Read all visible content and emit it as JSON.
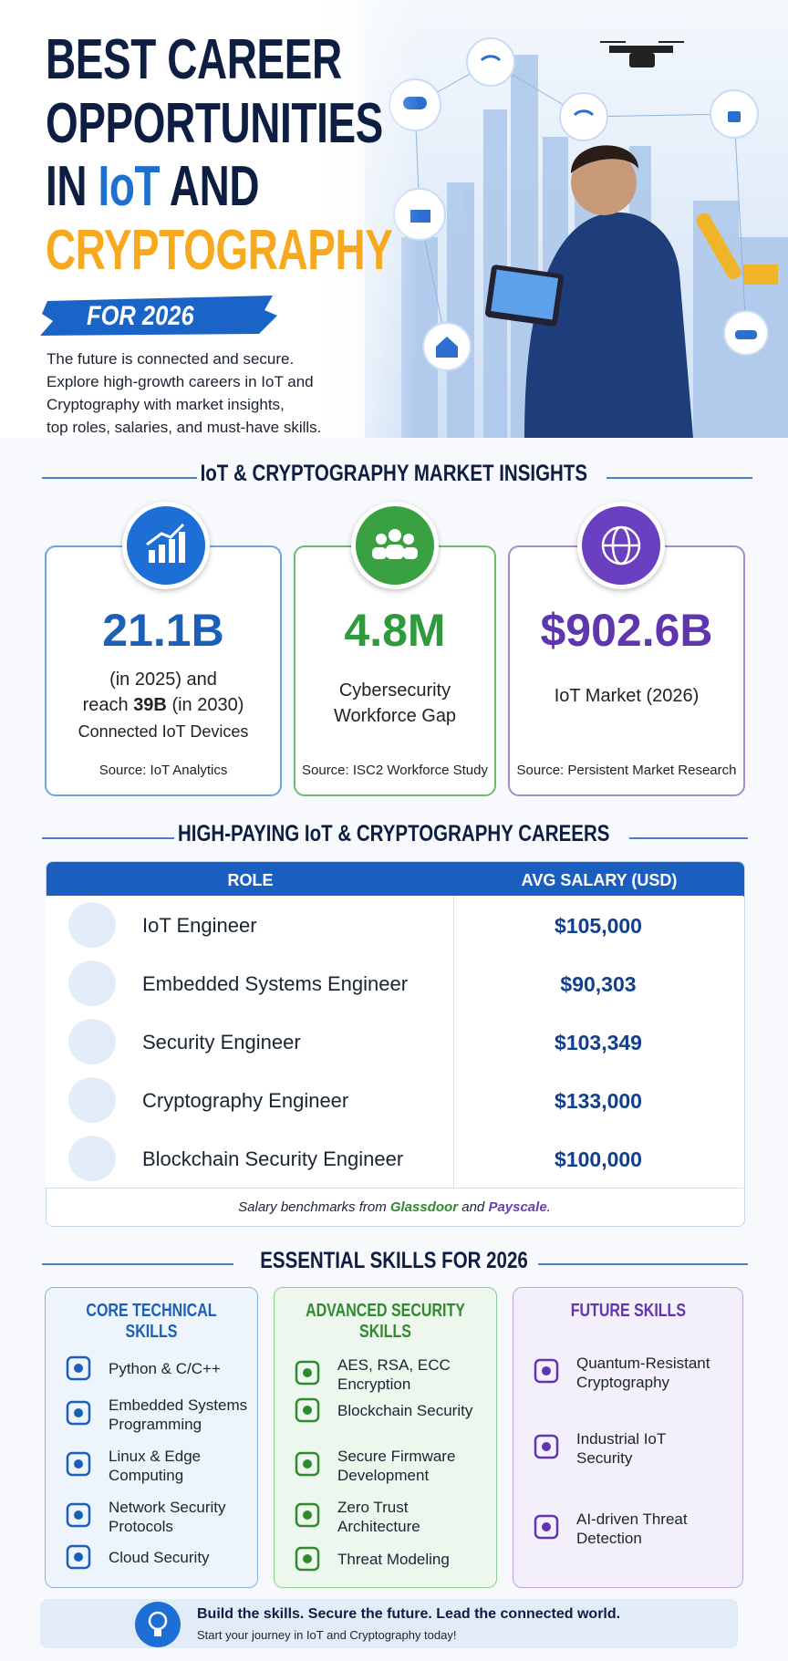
{
  "header": {
    "title_line_1": "BEST CAREER",
    "title_line_2": "OPPORTUNITIES",
    "title_line_3_a": "IN",
    "title_line_3_b": "IoT",
    "title_line_3_c": "AND",
    "title_line_4": "CRYPTOGRAPHY",
    "badge": "FOR 2026",
    "description": [
      "The future is connected and secure.",
      "Explore high-growth careers in IoT and",
      "Cryptography with market insights,",
      "top roles, salaries, and must-have skills."
    ]
  },
  "insights": {
    "heading": "IoT & CRYPTOGRAPHY MARKET INSIGHTS",
    "cards": [
      {
        "value": "21.1B",
        "text_a": "(in 2025) and",
        "text_b": "reach",
        "text_bold": "39B",
        "text_c": "(in 2030)",
        "label": "Connected IoT Devices",
        "source": "Source: IoT Analytics"
      },
      {
        "value": "4.8M",
        "label_1": "Cybersecurity",
        "label_2": "Workforce Gap",
        "source": "Source: ISC2 Workforce Study"
      },
      {
        "value": "$902.6B",
        "label": "IoT Market (2026)",
        "source": "Source: Persistent Market Research"
      }
    ]
  },
  "careers": {
    "heading": "HIGH-PAYING IoT & CRYPTOGRAPHY CAREERS",
    "columns": [
      "ROLE",
      "AVG SALARY (USD)"
    ],
    "rows": [
      [
        "IoT Engineer",
        "$105,000"
      ],
      [
        "Embedded Systems Engineer",
        "$90,303"
      ],
      [
        "Security Engineer",
        "$103,349"
      ],
      [
        "Cryptography Engineer",
        "$133,000"
      ],
      [
        "Blockchain Security Engineer",
        "$100,000"
      ]
    ],
    "note": {
      "prefix": "Salary benchmarks from",
      "source_1": "Glassdoor",
      "middle": "and",
      "source_2": "Payscale",
      "suffix": "."
    }
  },
  "skills": {
    "heading": "ESSENTIAL SKILLS FOR 2026",
    "columns": [
      {
        "title": "CORE TECHNICAL SKILLS",
        "items": [
          [
            "Python & C/C++"
          ],
          [
            "Embedded Systems",
            "Programming"
          ],
          [
            "Linux & Edge",
            "Computing"
          ],
          [
            "Network Security",
            "Protocols"
          ],
          [
            "Cloud Security"
          ]
        ]
      },
      {
        "title": "ADVANCED SECURITY SKILLS",
        "items": [
          [
            "AES, RSA, ECC",
            "Encryption"
          ],
          [
            "Blockchain Security"
          ],
          [
            "Secure Firmware",
            "Development"
          ],
          [
            "Zero Trust",
            "Architecture"
          ],
          [
            "Threat Modeling"
          ]
        ]
      },
      {
        "title": "FUTURE SKILLS",
        "items": [
          [
            "Quantum-Resistant",
            "Cryptography"
          ],
          [
            "Industrial IoT",
            "Security"
          ],
          [
            "AI-driven Threat",
            "Detection"
          ]
        ]
      }
    ]
  },
  "footer": {
    "headline": "Build the skills. Secure the future. Lead the connected world.",
    "subline": "Start your journey in IoT and Cryptography today!"
  }
}
